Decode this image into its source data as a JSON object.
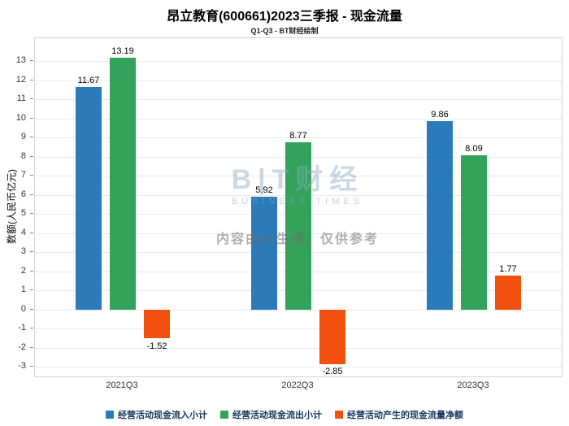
{
  "title": "昂立教育(600661)2023三季报 - 现金流量",
  "subtitle": "Q1-Q3 - BT财经绘制",
  "watermark": {
    "logo_text": "B|T财经",
    "logo_sub": "BUSINESS TIMES",
    "notice": "内容由AI生成，仅供参考"
  },
  "chart_data": {
    "type": "bar",
    "title": "昂立教育(600661)2023三季报 - 现金流量",
    "subtitle": "Q1-Q3 - BT财经绘制",
    "ylabel": "数额(人民币亿元)",
    "xlabel": "",
    "categories": [
      "2021Q3",
      "2022Q3",
      "2023Q3"
    ],
    "series": [
      {
        "name": "经营活动现金流入小计",
        "color": "#2b7bba",
        "values": [
          11.67,
          5.92,
          9.86
        ]
      },
      {
        "name": "经营活动现金流出小计",
        "color": "#33a35c",
        "values": [
          13.19,
          8.77,
          8.09
        ]
      },
      {
        "name": "经营活动产生的现金流量净额",
        "color": "#f2500f",
        "values": [
          -1.52,
          -2.85,
          1.77
        ]
      }
    ],
    "ylim": [
      -3.5,
      14.2
    ],
    "yticks": [
      -3,
      -2,
      -1,
      0,
      1,
      2,
      3,
      4,
      5,
      6,
      7,
      8,
      9,
      10,
      11,
      12,
      13
    ],
    "grid": true,
    "legend_position": "bottom"
  }
}
